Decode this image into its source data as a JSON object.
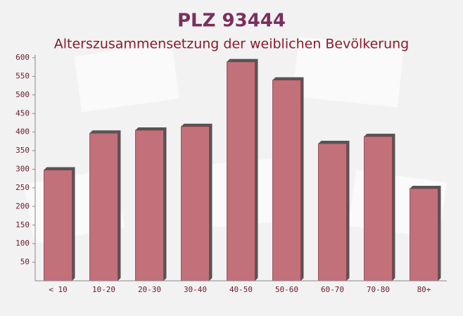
{
  "chart_data": {
    "type": "bar",
    "title": "PLZ 93444",
    "subtitle": "Alterszusammensetzung der weiblichen Bevölkerung",
    "categories": [
      "< 10",
      "10-20",
      "20-30",
      "30-40",
      "40-50",
      "50-60",
      "60-70",
      "70-80",
      "80+"
    ],
    "values": [
      298,
      397,
      405,
      415,
      589,
      540,
      369,
      388,
      248
    ],
    "color": "#c2707a",
    "ylim": [
      0,
      600
    ],
    "yticks": [
      50,
      100,
      150,
      200,
      250,
      300,
      350,
      400,
      450,
      500,
      550,
      600
    ]
  }
}
